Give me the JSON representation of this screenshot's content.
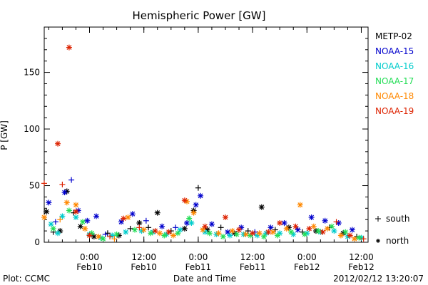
{
  "chart_data": {
    "type": "scatter",
    "title": "Hemispheric Power [GW]",
    "xlabel": "Date and Time",
    "ylabel": "P [GW]",
    "ylim": [
      0,
      190
    ],
    "yticks": [
      0,
      50,
      100,
      150
    ],
    "xlim": [
      "2012-02-09 14:00",
      "2012-02-12 13:30"
    ],
    "xticks": [
      {
        "t": "2012-02-10 00:00",
        "line1": "0:00",
        "line2": "Feb10"
      },
      {
        "t": "2012-02-10 12:00",
        "line1": "12:00",
        "line2": "Feb10"
      },
      {
        "t": "2012-02-11 00:00",
        "line1": "0:00",
        "line2": "Feb11"
      },
      {
        "t": "2012-02-11 12:00",
        "line1": "12:00",
        "line2": "Feb11"
      },
      {
        "t": "2012-02-12 00:00",
        "line1": "0:00",
        "line2": "Feb12"
      },
      {
        "t": "2012-02-12 12:00",
        "line1": "12:00",
        "line2": "Feb12"
      }
    ],
    "series": [
      {
        "name": "METP-02",
        "color": "#000000",
        "points": [
          [
            "2012-02-09 14:30",
            27,
            "north"
          ],
          [
            "2012-02-09 16:00",
            9,
            "south"
          ],
          [
            "2012-02-09 17:30",
            10,
            "north"
          ],
          [
            "2012-02-09 19:00",
            45,
            "north"
          ],
          [
            "2012-02-09 20:30",
            26,
            "south"
          ],
          [
            "2012-02-09 22:00",
            14,
            "north"
          ],
          [
            "2012-02-10 01:00",
            5,
            "north"
          ],
          [
            "2012-02-10 04:00",
            8,
            "south"
          ],
          [
            "2012-02-10 06:30",
            6,
            "north"
          ],
          [
            "2012-02-10 09:00",
            12,
            "south"
          ],
          [
            "2012-02-10 11:00",
            17,
            "north"
          ],
          [
            "2012-02-10 13:00",
            13,
            "south"
          ],
          [
            "2012-02-10 15:00",
            26,
            "north"
          ],
          [
            "2012-02-10 18:00",
            10,
            "south"
          ],
          [
            "2012-02-10 21:00",
            12,
            "north"
          ],
          [
            "2012-02-10 23:00",
            28,
            "north"
          ],
          [
            "2012-02-11 00:00",
            48,
            "south"
          ],
          [
            "2012-02-11 02:00",
            11,
            "north"
          ],
          [
            "2012-02-11 05:00",
            13,
            "south"
          ],
          [
            "2012-02-11 08:00",
            8,
            "north"
          ],
          [
            "2012-02-11 11:00",
            10,
            "south"
          ],
          [
            "2012-02-11 14:00",
            31,
            "north"
          ],
          [
            "2012-02-11 17:00",
            11,
            "south"
          ],
          [
            "2012-02-11 20:00",
            13,
            "north"
          ],
          [
            "2012-02-11 23:00",
            9,
            "south"
          ],
          [
            "2012-02-12 02:00",
            10,
            "north"
          ],
          [
            "2012-02-12 05:00",
            13,
            "south"
          ],
          [
            "2012-02-12 08:00",
            8,
            "north"
          ],
          [
            "2012-02-12 11:00",
            5,
            "south"
          ]
        ]
      },
      {
        "name": "NOAA-15",
        "color": "#0000cc",
        "points": [
          [
            "2012-02-09 15:00",
            35,
            "north"
          ],
          [
            "2012-02-09 16:30",
            18,
            "south"
          ],
          [
            "2012-02-09 18:30",
            44,
            "north"
          ],
          [
            "2012-02-09 20:00",
            55,
            "south"
          ],
          [
            "2012-02-09 21:30",
            28,
            "north"
          ],
          [
            "2012-02-09 23:30",
            19,
            "north"
          ],
          [
            "2012-02-10 01:30",
            23,
            "north"
          ],
          [
            "2012-02-10 03:30",
            7,
            "south"
          ],
          [
            "2012-02-10 07:00",
            18,
            "north"
          ],
          [
            "2012-02-10 09:30",
            25,
            "north"
          ],
          [
            "2012-02-10 12:30",
            19,
            "south"
          ],
          [
            "2012-02-10 16:00",
            14,
            "north"
          ],
          [
            "2012-02-10 19:00",
            13,
            "south"
          ],
          [
            "2012-02-10 21:30",
            17,
            "north"
          ],
          [
            "2012-02-10 23:30",
            33,
            "north"
          ],
          [
            "2012-02-11 00:30",
            41,
            "north"
          ],
          [
            "2012-02-11 03:00",
            16,
            "north"
          ],
          [
            "2012-02-11 06:30",
            9,
            "north"
          ],
          [
            "2012-02-11 09:30",
            13,
            "north"
          ],
          [
            "2012-02-11 12:30",
            9,
            "south"
          ],
          [
            "2012-02-11 16:00",
            13,
            "north"
          ],
          [
            "2012-02-11 19:00",
            17,
            "north"
          ],
          [
            "2012-02-11 22:00",
            11,
            "north"
          ],
          [
            "2012-02-12 01:00",
            22,
            "north"
          ],
          [
            "2012-02-12 04:00",
            19,
            "north"
          ],
          [
            "2012-02-12 07:00",
            17,
            "north"
          ],
          [
            "2012-02-12 10:00",
            11,
            "north"
          ]
        ]
      },
      {
        "name": "NOAA-16",
        "color": "#00cccc",
        "points": [
          [
            "2012-02-09 15:30",
            16,
            "north"
          ],
          [
            "2012-02-09 17:00",
            8,
            "north"
          ],
          [
            "2012-02-09 18:00",
            23,
            "north"
          ],
          [
            "2012-02-09 21:00",
            22,
            "north"
          ],
          [
            "2012-02-10 00:00",
            7,
            "north"
          ],
          [
            "2012-02-10 02:30",
            4,
            "north"
          ],
          [
            "2012-02-10 05:00",
            6,
            "north"
          ],
          [
            "2012-02-10 08:00",
            9,
            "north"
          ],
          [
            "2012-02-10 11:30",
            10,
            "north"
          ],
          [
            "2012-02-10 14:00",
            9,
            "north"
          ],
          [
            "2012-02-10 17:00",
            7,
            "north"
          ],
          [
            "2012-02-10 20:00",
            11,
            "north"
          ],
          [
            "2012-02-10 22:30",
            17,
            "north"
          ],
          [
            "2012-02-11 01:30",
            9,
            "north"
          ],
          [
            "2012-02-11 04:00",
            7,
            "north"
          ],
          [
            "2012-02-11 07:00",
            6,
            "north"
          ],
          [
            "2012-02-11 10:00",
            7,
            "north"
          ],
          [
            "2012-02-11 13:00",
            6,
            "north"
          ],
          [
            "2012-02-11 15:00",
            8,
            "north"
          ],
          [
            "2012-02-11 18:00",
            8,
            "north"
          ],
          [
            "2012-02-11 21:00",
            7,
            "north"
          ],
          [
            "2012-02-12 00:00",
            8,
            "north"
          ],
          [
            "2012-02-12 03:00",
            9,
            "north"
          ],
          [
            "2012-02-12 06:00",
            10,
            "north"
          ],
          [
            "2012-02-12 09:00",
            5,
            "north"
          ],
          [
            "2012-02-12 12:00",
            4,
            "north"
          ]
        ]
      },
      {
        "name": "NOAA-17",
        "color": "#22dd55",
        "points": [
          [
            "2012-02-09 16:00",
            12,
            "north"
          ],
          [
            "2012-02-09 19:30",
            28,
            "north"
          ],
          [
            "2012-02-09 22:30",
            18,
            "north"
          ],
          [
            "2012-02-10 00:30",
            8,
            "north"
          ],
          [
            "2012-02-10 03:00",
            3,
            "north"
          ],
          [
            "2012-02-10 06:00",
            7,
            "north"
          ],
          [
            "2012-02-10 10:00",
            11,
            "north"
          ],
          [
            "2012-02-10 13:30",
            8,
            "north"
          ],
          [
            "2012-02-10 16:30",
            6,
            "north"
          ],
          [
            "2012-02-10 19:30",
            8,
            "north"
          ],
          [
            "2012-02-10 22:00",
            21,
            "north"
          ],
          [
            "2012-02-11 02:30",
            8,
            "north"
          ],
          [
            "2012-02-11 05:30",
            5,
            "north"
          ],
          [
            "2012-02-11 08:30",
            7,
            "north"
          ],
          [
            "2012-02-11 11:30",
            6,
            "north"
          ],
          [
            "2012-02-11 14:30",
            5,
            "north"
          ],
          [
            "2012-02-11 17:30",
            6,
            "north"
          ],
          [
            "2012-02-11 20:30",
            9,
            "north"
          ],
          [
            "2012-02-11 23:30",
            7,
            "north"
          ],
          [
            "2012-02-12 02:30",
            10,
            "north"
          ],
          [
            "2012-02-12 05:30",
            14,
            "north"
          ],
          [
            "2012-02-12 08:30",
            9,
            "north"
          ],
          [
            "2012-02-12 11:30",
            4,
            "north"
          ]
        ]
      },
      {
        "name": "NOAA-18",
        "color": "#ff8800",
        "points": [
          [
            "2012-02-09 14:00",
            22,
            "north"
          ],
          [
            "2012-02-09 17:30",
            20,
            "south"
          ],
          [
            "2012-02-09 19:00",
            35,
            "north"
          ],
          [
            "2012-02-09 21:00",
            33,
            "north"
          ],
          [
            "2012-02-09 23:00",
            12,
            "north"
          ],
          [
            "2012-02-10 02:00",
            5,
            "north"
          ],
          [
            "2012-02-10 05:30",
            3,
            "south"
          ],
          [
            "2012-02-10 08:30",
            22,
            "north"
          ],
          [
            "2012-02-10 12:00",
            11,
            "north"
          ],
          [
            "2012-02-10 15:30",
            8,
            "north"
          ],
          [
            "2012-02-10 18:30",
            6,
            "north"
          ],
          [
            "2012-02-10 21:30",
            36,
            "north"
          ],
          [
            "2012-02-10 23:00",
            26,
            "north"
          ],
          [
            "2012-02-11 01:00",
            11,
            "north"
          ],
          [
            "2012-02-11 04:30",
            8,
            "north"
          ],
          [
            "2012-02-11 07:30",
            10,
            "north"
          ],
          [
            "2012-02-11 10:30",
            7,
            "north"
          ],
          [
            "2012-02-11 13:30",
            8,
            "north"
          ],
          [
            "2012-02-11 16:30",
            9,
            "north"
          ],
          [
            "2012-02-11 19:30",
            12,
            "north"
          ],
          [
            "2012-02-11 22:30",
            33,
            "north"
          ],
          [
            "2012-02-12 01:30",
            14,
            "north"
          ],
          [
            "2012-02-12 04:30",
            12,
            "north"
          ],
          [
            "2012-02-12 07:30",
            6,
            "north"
          ],
          [
            "2012-02-12 10:30",
            3,
            "north"
          ]
        ]
      },
      {
        "name": "NOAA-19",
        "color": "#dd2200",
        "points": [
          [
            "2012-02-09 14:00",
            52,
            "south"
          ],
          [
            "2012-02-09 17:00",
            87,
            "north"
          ],
          [
            "2012-02-09 18:00",
            51,
            "south"
          ],
          [
            "2012-02-09 19:30",
            172,
            "north"
          ],
          [
            "2012-02-09 21:00",
            27,
            "north"
          ],
          [
            "2012-02-10 00:00",
            6,
            "north"
          ],
          [
            "2012-02-10 04:30",
            5,
            "south"
          ],
          [
            "2012-02-10 07:30",
            21,
            "north"
          ],
          [
            "2012-02-10 11:00",
            13,
            "south"
          ],
          [
            "2012-02-10 14:30",
            10,
            "north"
          ],
          [
            "2012-02-10 17:30",
            9,
            "north"
          ],
          [
            "2012-02-10 21:00",
            37,
            "north"
          ],
          [
            "2012-02-11 01:30",
            14,
            "north"
          ],
          [
            "2012-02-11 06:00",
            22,
            "north"
          ],
          [
            "2012-02-11 09:00",
            11,
            "north"
          ],
          [
            "2012-02-11 12:00",
            8,
            "north"
          ],
          [
            "2012-02-11 15:30",
            9,
            "north"
          ],
          [
            "2012-02-11 18:00",
            17,
            "north"
          ],
          [
            "2012-02-11 21:30",
            14,
            "north"
          ],
          [
            "2012-02-12 00:30",
            12,
            "north"
          ],
          [
            "2012-02-12 03:30",
            9,
            "north"
          ],
          [
            "2012-02-12 06:30",
            18,
            "south"
          ],
          [
            "2012-02-12 09:30",
            6,
            "north"
          ],
          [
            "2012-02-12 12:30",
            3,
            "south"
          ]
        ]
      }
    ],
    "marker_legend": [
      {
        "symbol": "+",
        "label": "south"
      },
      {
        "symbol": "*",
        "label": "north"
      }
    ]
  },
  "footer": {
    "left": "Plot: CCMC",
    "right": "2012/02/12 13:20:07"
  }
}
